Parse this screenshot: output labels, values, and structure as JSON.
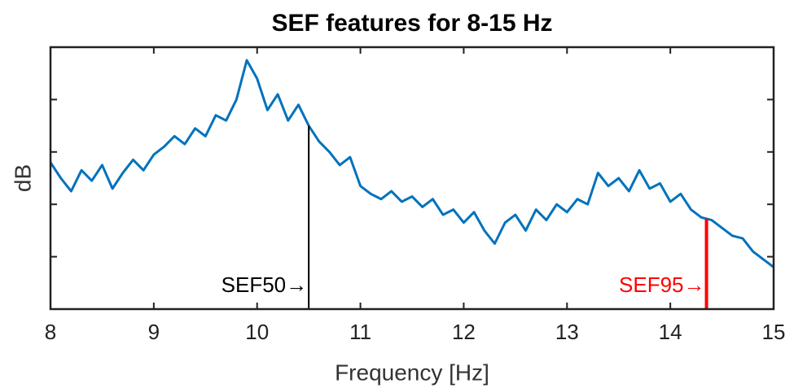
{
  "chart_data": {
    "type": "line",
    "title": "SEF features for 8-15 Hz",
    "xlabel": "Frequency [Hz]",
    "ylabel": "dB",
    "xlim": [
      8,
      15
    ],
    "xticks": [
      8,
      9,
      10,
      11,
      12,
      13,
      14,
      15
    ],
    "ylim": [
      0,
      100
    ],
    "yticks": [
      20,
      40,
      60,
      80
    ],
    "series": [
      {
        "color": "#0072bd",
        "x": [
          8.0,
          8.1,
          8.2,
          8.3,
          8.4,
          8.5,
          8.6,
          8.7,
          8.8,
          8.9,
          9.0,
          9.1,
          9.2,
          9.3,
          9.4,
          9.5,
          9.6,
          9.7,
          9.8,
          9.9,
          10.0,
          10.1,
          10.2,
          10.3,
          10.4,
          10.5,
          10.6,
          10.7,
          10.8,
          10.9,
          11.0,
          11.1,
          11.2,
          11.3,
          11.4,
          11.5,
          11.6,
          11.7,
          11.8,
          11.9,
          12.0,
          12.1,
          12.2,
          12.3,
          12.4,
          12.5,
          12.6,
          12.7,
          12.8,
          12.9,
          13.0,
          13.1,
          13.2,
          13.3,
          13.4,
          13.5,
          13.6,
          13.7,
          13.8,
          13.9,
          14.0,
          14.1,
          14.2,
          14.3,
          14.4,
          14.5,
          14.6,
          14.7,
          14.8,
          14.9,
          15.0
        ],
        "values": [
          56,
          50,
          45,
          53,
          49,
          55,
          46,
          52,
          57,
          53,
          59,
          62,
          66,
          63,
          69,
          66,
          74,
          72,
          80,
          95,
          88,
          76,
          82,
          72,
          78,
          70,
          64,
          60,
          55,
          58,
          47,
          44,
          42,
          45,
          41,
          43,
          39,
          42,
          36,
          38,
          33,
          37,
          30,
          25,
          33,
          36,
          30,
          38,
          34,
          40,
          37,
          42,
          40,
          52,
          47,
          50,
          45,
          53,
          46,
          48,
          41,
          44,
          38,
          35,
          34,
          31,
          28,
          27,
          22,
          19,
          16
        ]
      }
    ],
    "annotations": [
      {
        "text": "SEF50→",
        "x": 10.5,
        "color": "#000000"
      },
      {
        "text": "SEF95→",
        "x": 14.35,
        "color": "#ff0000"
      }
    ]
  }
}
